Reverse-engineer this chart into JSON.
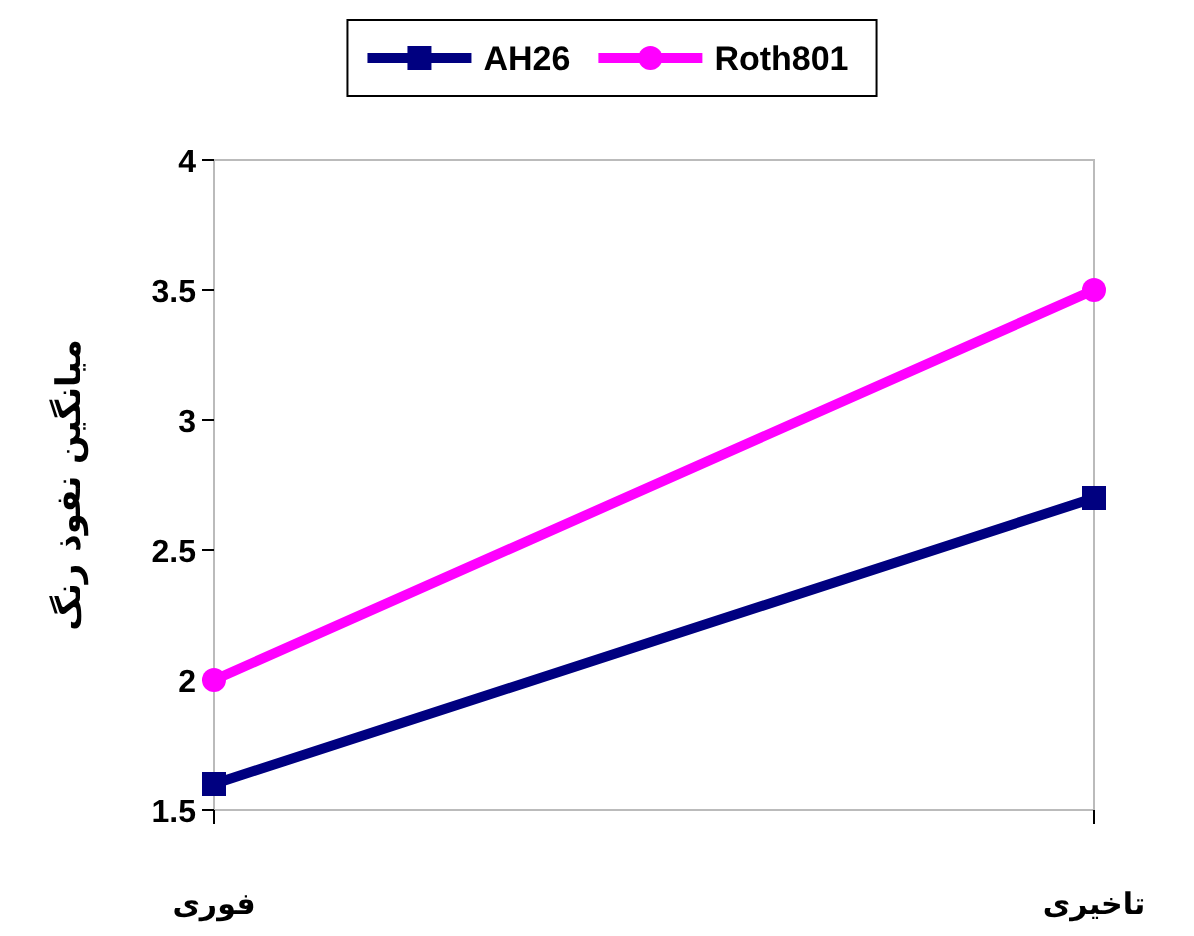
{
  "chart_data": {
    "type": "line",
    "ylabel": "میانگین نفوذ رنگ",
    "categories": [
      "فوری",
      "تاخیری"
    ],
    "series": [
      {
        "name": "AH26",
        "color": "#000080",
        "marker": "square",
        "values": [
          1.6,
          2.7
        ]
      },
      {
        "name": "Roth801",
        "color": "#ff00ff",
        "marker": "circle",
        "values": [
          2.0,
          3.5
        ]
      }
    ],
    "ylim": [
      1.5,
      4
    ],
    "yticks": [
      1.5,
      2,
      2.5,
      3,
      3.5,
      4
    ],
    "grid": false,
    "legend": "top",
    "line_style": "solid"
  }
}
